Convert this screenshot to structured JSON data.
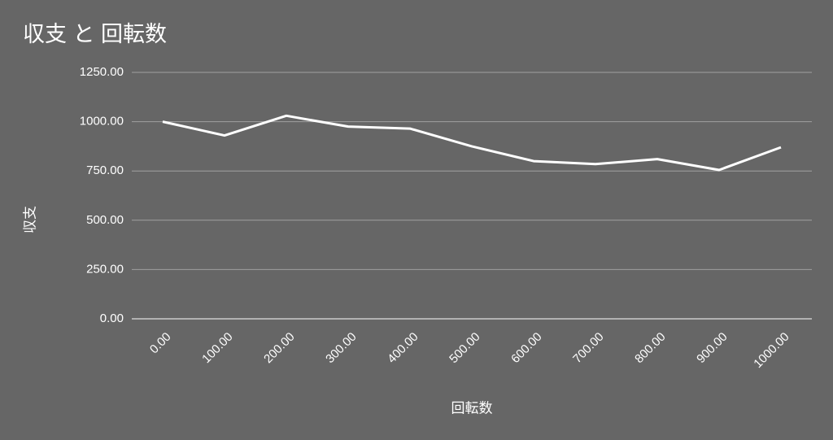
{
  "chart_data": {
    "type": "line",
    "title": "収支 と 回転数",
    "x_label": "回転数",
    "y_label": "収支",
    "categories": [
      "0.00",
      "100.00",
      "200.00",
      "300.00",
      "400.00",
      "500.00",
      "600.00",
      "700.00",
      "800.00",
      "900.00",
      "1000.00"
    ],
    "values": [
      1000,
      930,
      1030,
      975,
      965,
      875,
      800,
      785,
      810,
      755,
      870
    ],
    "color": "#ffffff",
    "ylim": [
      0,
      1250
    ],
    "yticks": [
      {
        "value": 0,
        "label": "0.00"
      },
      {
        "value": 250,
        "label": "250.00"
      },
      {
        "value": 500,
        "label": "500.00"
      },
      {
        "value": 750,
        "label": "750.00"
      },
      {
        "value": 1000,
        "label": "1000.00"
      },
      {
        "value": 1250,
        "label": "1250.00"
      }
    ],
    "grid": true
  }
}
